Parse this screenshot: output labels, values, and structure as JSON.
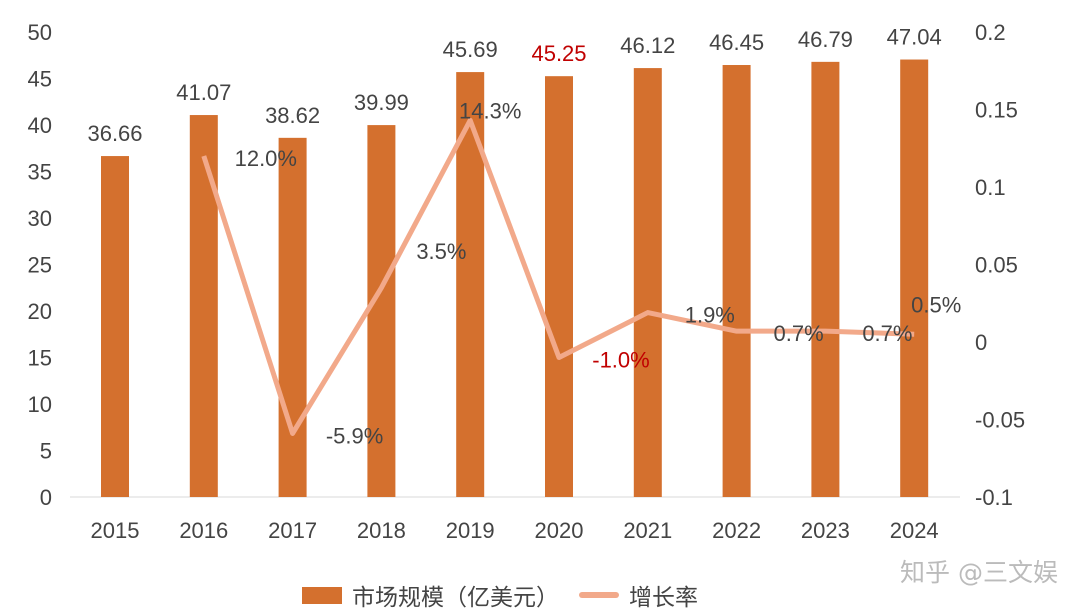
{
  "chart_data": {
    "type": "bar+line",
    "categories": [
      "2015",
      "2016",
      "2017",
      "2018",
      "2019",
      "2020",
      "2021",
      "2022",
      "2023",
      "2024"
    ],
    "series": [
      {
        "name": "市场规模（亿美元）",
        "type": "bar",
        "axis": "left",
        "color": "#D4702E",
        "values": [
          36.66,
          41.07,
          38.62,
          39.99,
          45.69,
          45.25,
          46.12,
          46.45,
          46.79,
          47.04
        ],
        "labels": [
          "36.66",
          "41.07",
          "38.62",
          "39.99",
          "45.69",
          "45.25",
          "46.12",
          "46.45",
          "46.79",
          "47.04"
        ],
        "highlight_color": "#C00000",
        "highlight_index": 5
      },
      {
        "name": "增长率",
        "type": "line",
        "axis": "right",
        "color": "#F2A98A",
        "values": [
          null,
          0.12,
          -0.059,
          0.035,
          0.143,
          -0.01,
          0.019,
          0.007,
          0.007,
          0.005
        ],
        "labels": [
          "",
          "12.0%",
          "-5.9%",
          "3.5%",
          "14.3%",
          "-1.0%",
          "1.9%",
          "0.7%",
          "0.7%",
          "0.5%"
        ],
        "highlight_color": "#C00000",
        "highlight_index": 5
      }
    ],
    "left_axis": {
      "ylim": [
        0,
        50
      ],
      "ticks": [
        "0",
        "5",
        "10",
        "15",
        "20",
        "25",
        "30",
        "35",
        "40",
        "45",
        "50"
      ]
    },
    "right_axis": {
      "ylim": [
        -0.1,
        0.2
      ],
      "ticks": [
        "-0.1",
        "-0.05",
        "0",
        "0.05",
        "0.1",
        "0.15",
        "0.2"
      ]
    },
    "grid": false,
    "legend": "bottom"
  },
  "watermark": "知乎 @三文娱"
}
